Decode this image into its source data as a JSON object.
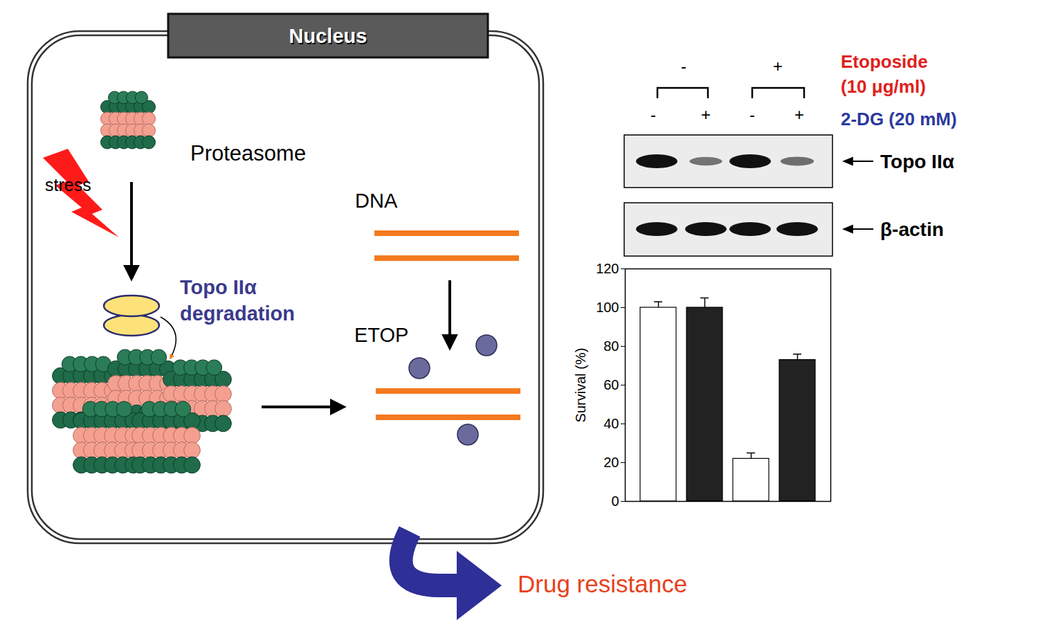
{
  "diagram": {
    "nucleus": {
      "label": "Nucleus"
    },
    "proteasome": {
      "label": "Proteasome"
    },
    "stress": {
      "label": "stress"
    },
    "degradation": {
      "label_lines": [
        "Topo IIα",
        "degradation"
      ]
    },
    "dna": {
      "label": "DNA"
    },
    "drug": {
      "label": "ETOP"
    },
    "outcome": {
      "label": "Drug resistance"
    }
  },
  "blot": {
    "treatment1": {
      "label_lines": [
        "Etoposide",
        "(10 μg/ml)"
      ],
      "groups": [
        "-",
        "+"
      ]
    },
    "treatment2": {
      "label": "2-DG (20 mM)",
      "lanes": [
        "-",
        "+",
        "-",
        "+"
      ]
    },
    "rows": [
      {
        "label": "Topo IIα",
        "band_intensity": [
          1,
          0.3,
          1,
          0.35
        ]
      },
      {
        "label": "β-actin",
        "band_intensity": [
          1,
          1,
          1,
          1
        ]
      }
    ]
  },
  "chart_data": {
    "type": "bar",
    "categories": [
      null,
      null,
      null,
      null
    ],
    "values": [
      100,
      100,
      22,
      73
    ],
    "errors": [
      3,
      5,
      3,
      3
    ],
    "colors": [
      "#ffffff",
      "#222222",
      "#ffffff",
      "#222222"
    ],
    "ylim": [
      0,
      120
    ],
    "yticks": [
      0,
      20,
      40,
      60,
      80,
      100,
      120
    ],
    "y_label": "Survival (%)",
    "tick_labels": "y"
  }
}
